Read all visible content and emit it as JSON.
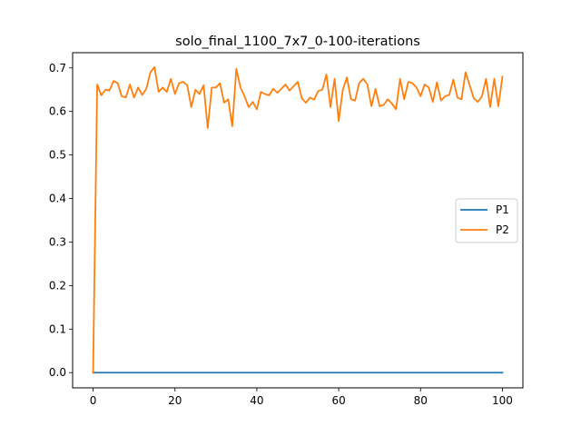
{
  "chart_data": {
    "type": "line",
    "title": "solo_final_1100_7x7_0-100-iterations",
    "xlabel": "",
    "ylabel": "",
    "xlim": [
      -5,
      105
    ],
    "ylim": [
      -0.035,
      0.735
    ],
    "xticks": [
      0,
      20,
      40,
      60,
      80,
      100
    ],
    "xtick_labels": [
      "0",
      "20",
      "40",
      "60",
      "80",
      "100"
    ],
    "yticks": [
      0.0,
      0.1,
      0.2,
      0.3,
      0.4,
      0.5,
      0.6,
      0.7
    ],
    "ytick_labels": [
      "0.0",
      "0.1",
      "0.2",
      "0.3",
      "0.4",
      "0.5",
      "0.6",
      "0.7"
    ],
    "grid": false,
    "legend_position": "center-right",
    "x": [
      0,
      1,
      2,
      3,
      4,
      5,
      6,
      7,
      8,
      9,
      10,
      11,
      12,
      13,
      14,
      15,
      16,
      17,
      18,
      19,
      20,
      21,
      22,
      23,
      24,
      25,
      26,
      27,
      28,
      29,
      30,
      31,
      32,
      33,
      34,
      35,
      36,
      37,
      38,
      39,
      40,
      41,
      42,
      43,
      44,
      45,
      46,
      47,
      48,
      49,
      50,
      51,
      52,
      53,
      54,
      55,
      56,
      57,
      58,
      59,
      60,
      61,
      62,
      63,
      64,
      65,
      66,
      67,
      68,
      69,
      70,
      71,
      72,
      73,
      74,
      75,
      76,
      77,
      78,
      79,
      80,
      81,
      82,
      83,
      84,
      85,
      86,
      87,
      88,
      89,
      90,
      91,
      92,
      93,
      94,
      95,
      96,
      97,
      98,
      99,
      100
    ],
    "series": [
      {
        "name": "P1",
        "color": "#1f77b4",
        "values": [
          0,
          0,
          0,
          0,
          0,
          0,
          0,
          0,
          0,
          0,
          0,
          0,
          0,
          0,
          0,
          0,
          0,
          0,
          0,
          0,
          0,
          0,
          0,
          0,
          0,
          0,
          0,
          0,
          0,
          0,
          0,
          0,
          0,
          0,
          0,
          0,
          0,
          0,
          0,
          0,
          0,
          0,
          0,
          0,
          0,
          0,
          0,
          0,
          0,
          0,
          0,
          0,
          0,
          0,
          0,
          0,
          0,
          0,
          0,
          0,
          0,
          0,
          0,
          0,
          0,
          0,
          0,
          0,
          0,
          0,
          0,
          0,
          0,
          0,
          0,
          0,
          0,
          0,
          0,
          0,
          0,
          0,
          0,
          0,
          0,
          0,
          0,
          0,
          0,
          0,
          0,
          0,
          0,
          0,
          0,
          0,
          0,
          0,
          0,
          0,
          0
        ]
      },
      {
        "name": "P2",
        "color": "#ff7f0e",
        "values": [
          0.0,
          0.662,
          0.637,
          0.65,
          0.648,
          0.67,
          0.665,
          0.635,
          0.632,
          0.662,
          0.632,
          0.655,
          0.638,
          0.652,
          0.69,
          0.702,
          0.645,
          0.655,
          0.645,
          0.675,
          0.64,
          0.665,
          0.668,
          0.66,
          0.61,
          0.65,
          0.64,
          0.66,
          0.562,
          0.655,
          0.655,
          0.665,
          0.62,
          0.628,
          0.566,
          0.698,
          0.655,
          0.635,
          0.61,
          0.622,
          0.605,
          0.645,
          0.64,
          0.637,
          0.652,
          0.643,
          0.652,
          0.662,
          0.648,
          0.658,
          0.668,
          0.63,
          0.62,
          0.632,
          0.627,
          0.647,
          0.65,
          0.685,
          0.61,
          0.675,
          0.578,
          0.65,
          0.678,
          0.628,
          0.625,
          0.665,
          0.675,
          0.662,
          0.612,
          0.652,
          0.612,
          0.615,
          0.628,
          0.618,
          0.605,
          0.675,
          0.628,
          0.668,
          0.665,
          0.655,
          0.635,
          0.662,
          0.655,
          0.622,
          0.667,
          0.625,
          0.635,
          0.638,
          0.673,
          0.632,
          0.628,
          0.69,
          0.66,
          0.63,
          0.622,
          0.635,
          0.675,
          0.61,
          0.675,
          0.612,
          0.68
        ]
      }
    ]
  }
}
